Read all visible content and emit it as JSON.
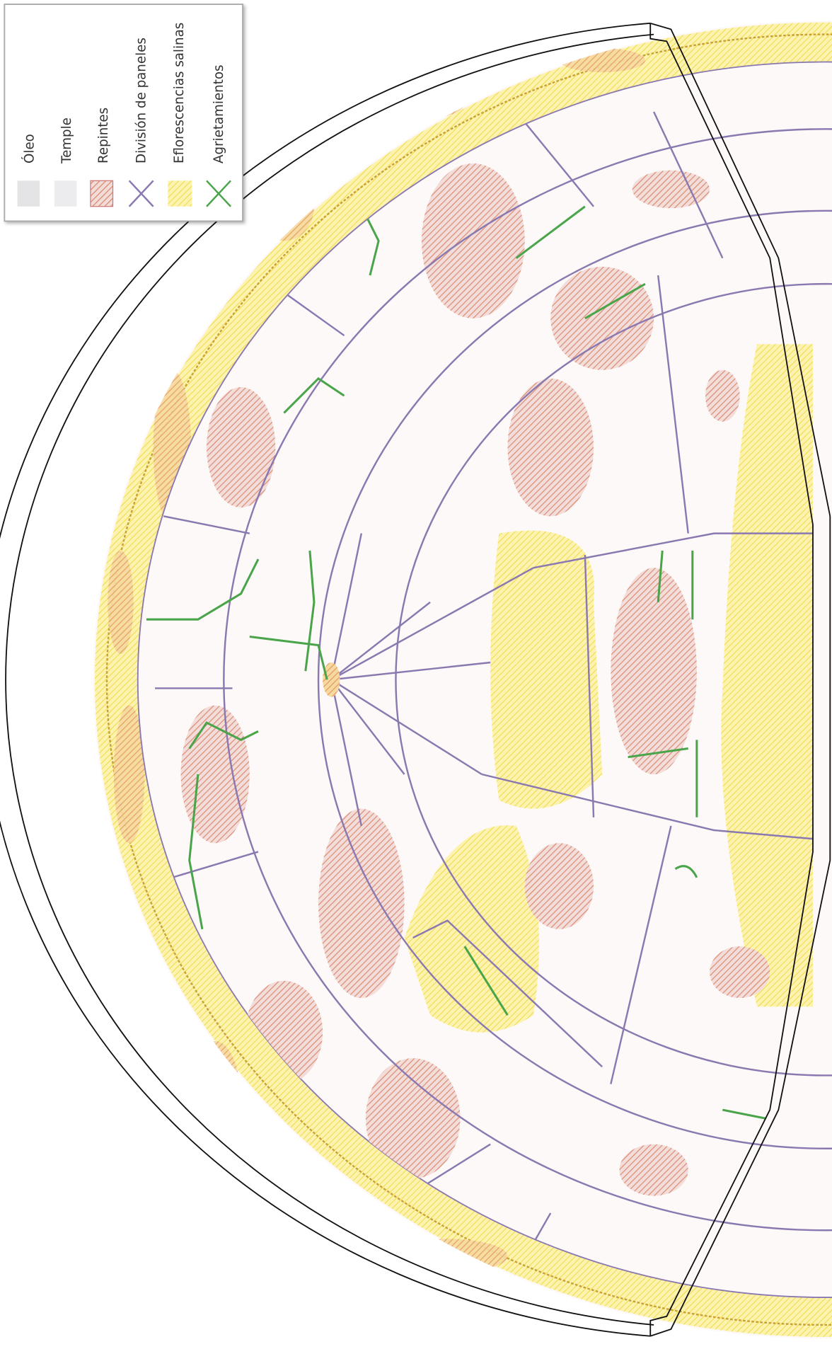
{
  "legend": {
    "items": [
      {
        "label": "Óleo"
      },
      {
        "label": "Temple"
      },
      {
        "label": "Repintes"
      },
      {
        "label": "División de paneles"
      },
      {
        "label": "Eflorescencias salinas"
      },
      {
        "label": "Agrietamientos"
      }
    ]
  }
}
